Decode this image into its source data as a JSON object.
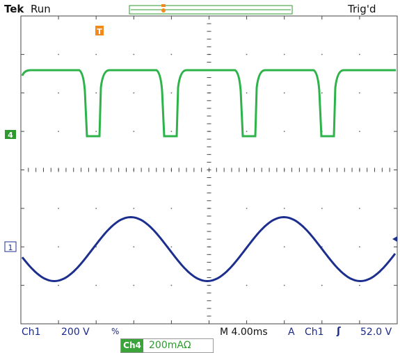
{
  "header": {
    "brand": "Tek",
    "state": "Run",
    "trigger_status": "Trig'd"
  },
  "markers": {
    "trigger_position": "T",
    "ch4_ground": "4",
    "ch1_ground": "1"
  },
  "status_bar": {
    "ch1_label": "Ch1",
    "ch1_scale": "200 V",
    "ch1_bw_symbol": "%",
    "timebase": "M 4.00ms",
    "trigger_mode": "A",
    "trigger_source": "Ch1",
    "trigger_slope_symbol": "ʃ",
    "trigger_level": "52.0 V",
    "ch4_label": "Ch4",
    "ch4_scale": "200mAΩ"
  },
  "colors": {
    "ch4_trace": "#2db34a",
    "ch1_trace": "#1c2f8e",
    "trigger_marker": "#f08a1c",
    "grid": "#555555"
  },
  "traces": {
    "ch4": {
      "kind": "pulse-train",
      "high_div": 2.0,
      "low_div": 0.0,
      "period_ms": 10.0,
      "low_ms": 1.0
    },
    "ch1": {
      "kind": "sine",
      "amplitude_div": 0.9,
      "offset_div": -0.3,
      "period_ms": 20.0
    }
  }
}
